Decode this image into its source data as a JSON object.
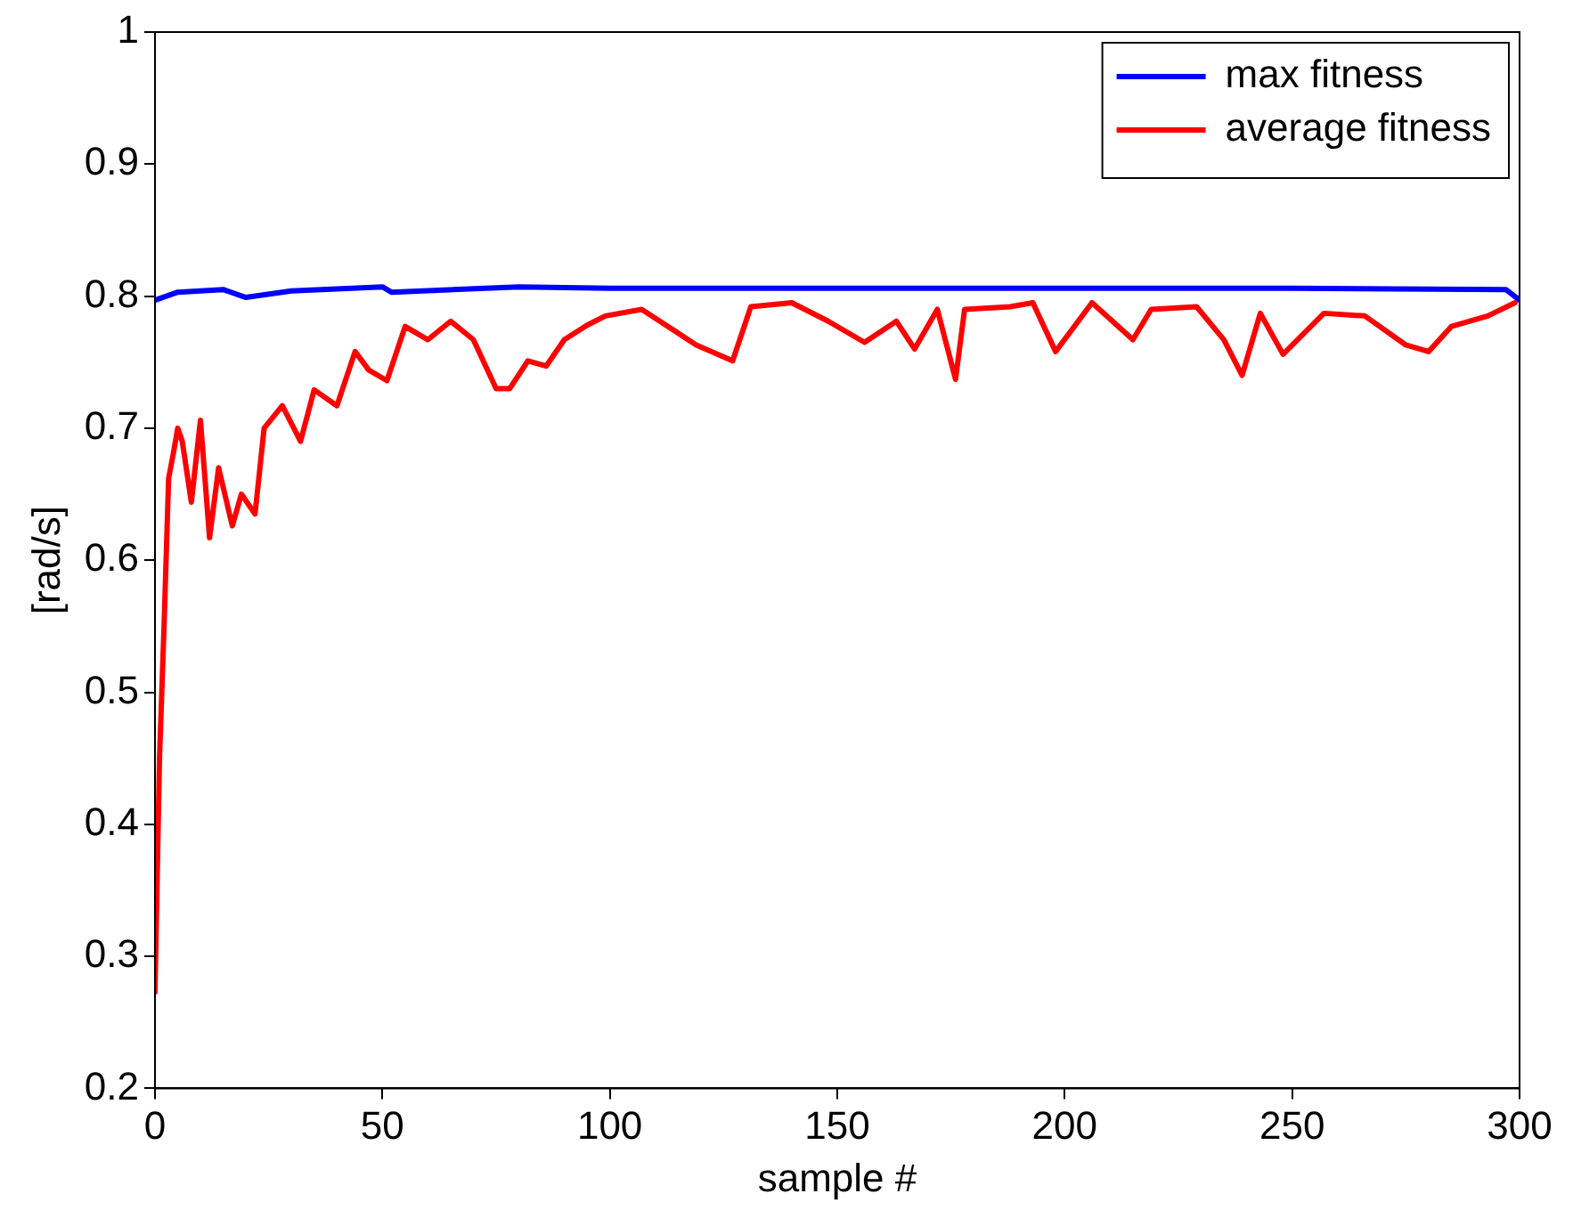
{
  "chart_data": {
    "type": "line",
    "xlabel": "sample #",
    "ylabel": "[rad/s]",
    "xlim": [
      0,
      300
    ],
    "xticks": [
      0,
      50,
      100,
      150,
      200,
      250,
      300
    ],
    "ylim": [
      0.2,
      1
    ],
    "yticks": [
      0.2,
      0.3,
      0.4,
      0.5,
      0.6,
      0.7,
      0.8,
      0.9,
      1
    ],
    "grid": false,
    "legend": "top right",
    "marker": "none",
    "line_style": "solid",
    "series": [
      {
        "name": "max fitness",
        "color": "#0000ff",
        "x": [
          0,
          5,
          15,
          20,
          30,
          50,
          52,
          80,
          100,
          150,
          200,
          250,
          297,
          300
        ],
        "values": [
          0.797,
          0.803,
          0.805,
          0.799,
          0.804,
          0.807,
          0.803,
          0.807,
          0.806,
          0.806,
          0.806,
          0.806,
          0.805,
          0.797
        ]
      },
      {
        "name": "average fitness",
        "color": "#ff0000",
        "x": [
          0,
          1,
          2,
          3,
          4,
          5,
          6,
          8,
          10,
          12,
          14,
          17,
          19,
          22,
          24,
          28,
          32,
          35,
          40,
          44,
          47,
          51,
          55,
          60,
          65,
          70,
          75,
          78,
          82,
          86,
          90,
          95,
          99,
          107,
          119,
          127,
          131,
          140,
          148,
          156,
          163,
          167,
          172,
          176,
          178,
          188,
          193,
          198,
          206,
          215,
          219,
          229,
          235,
          239,
          243,
          248,
          257,
          266,
          275,
          280,
          285,
          293,
          299
        ],
        "values": [
          0.273,
          0.45,
          0.55,
          0.662,
          0.68,
          0.7,
          0.69,
          0.644,
          0.706,
          0.617,
          0.67,
          0.626,
          0.65,
          0.635,
          0.7,
          0.717,
          0.69,
          0.729,
          0.717,
          0.758,
          0.744,
          0.736,
          0.777,
          0.767,
          0.781,
          0.767,
          0.73,
          0.73,
          0.751,
          0.747,
          0.767,
          0.778,
          0.785,
          0.79,
          0.763,
          0.751,
          0.792,
          0.795,
          0.781,
          0.765,
          0.781,
          0.76,
          0.79,
          0.737,
          0.79,
          0.792,
          0.795,
          0.758,
          0.795,
          0.767,
          0.79,
          0.792,
          0.767,
          0.74,
          0.787,
          0.756,
          0.787,
          0.785,
          0.763,
          0.758,
          0.777,
          0.785,
          0.795
        ]
      }
    ]
  }
}
